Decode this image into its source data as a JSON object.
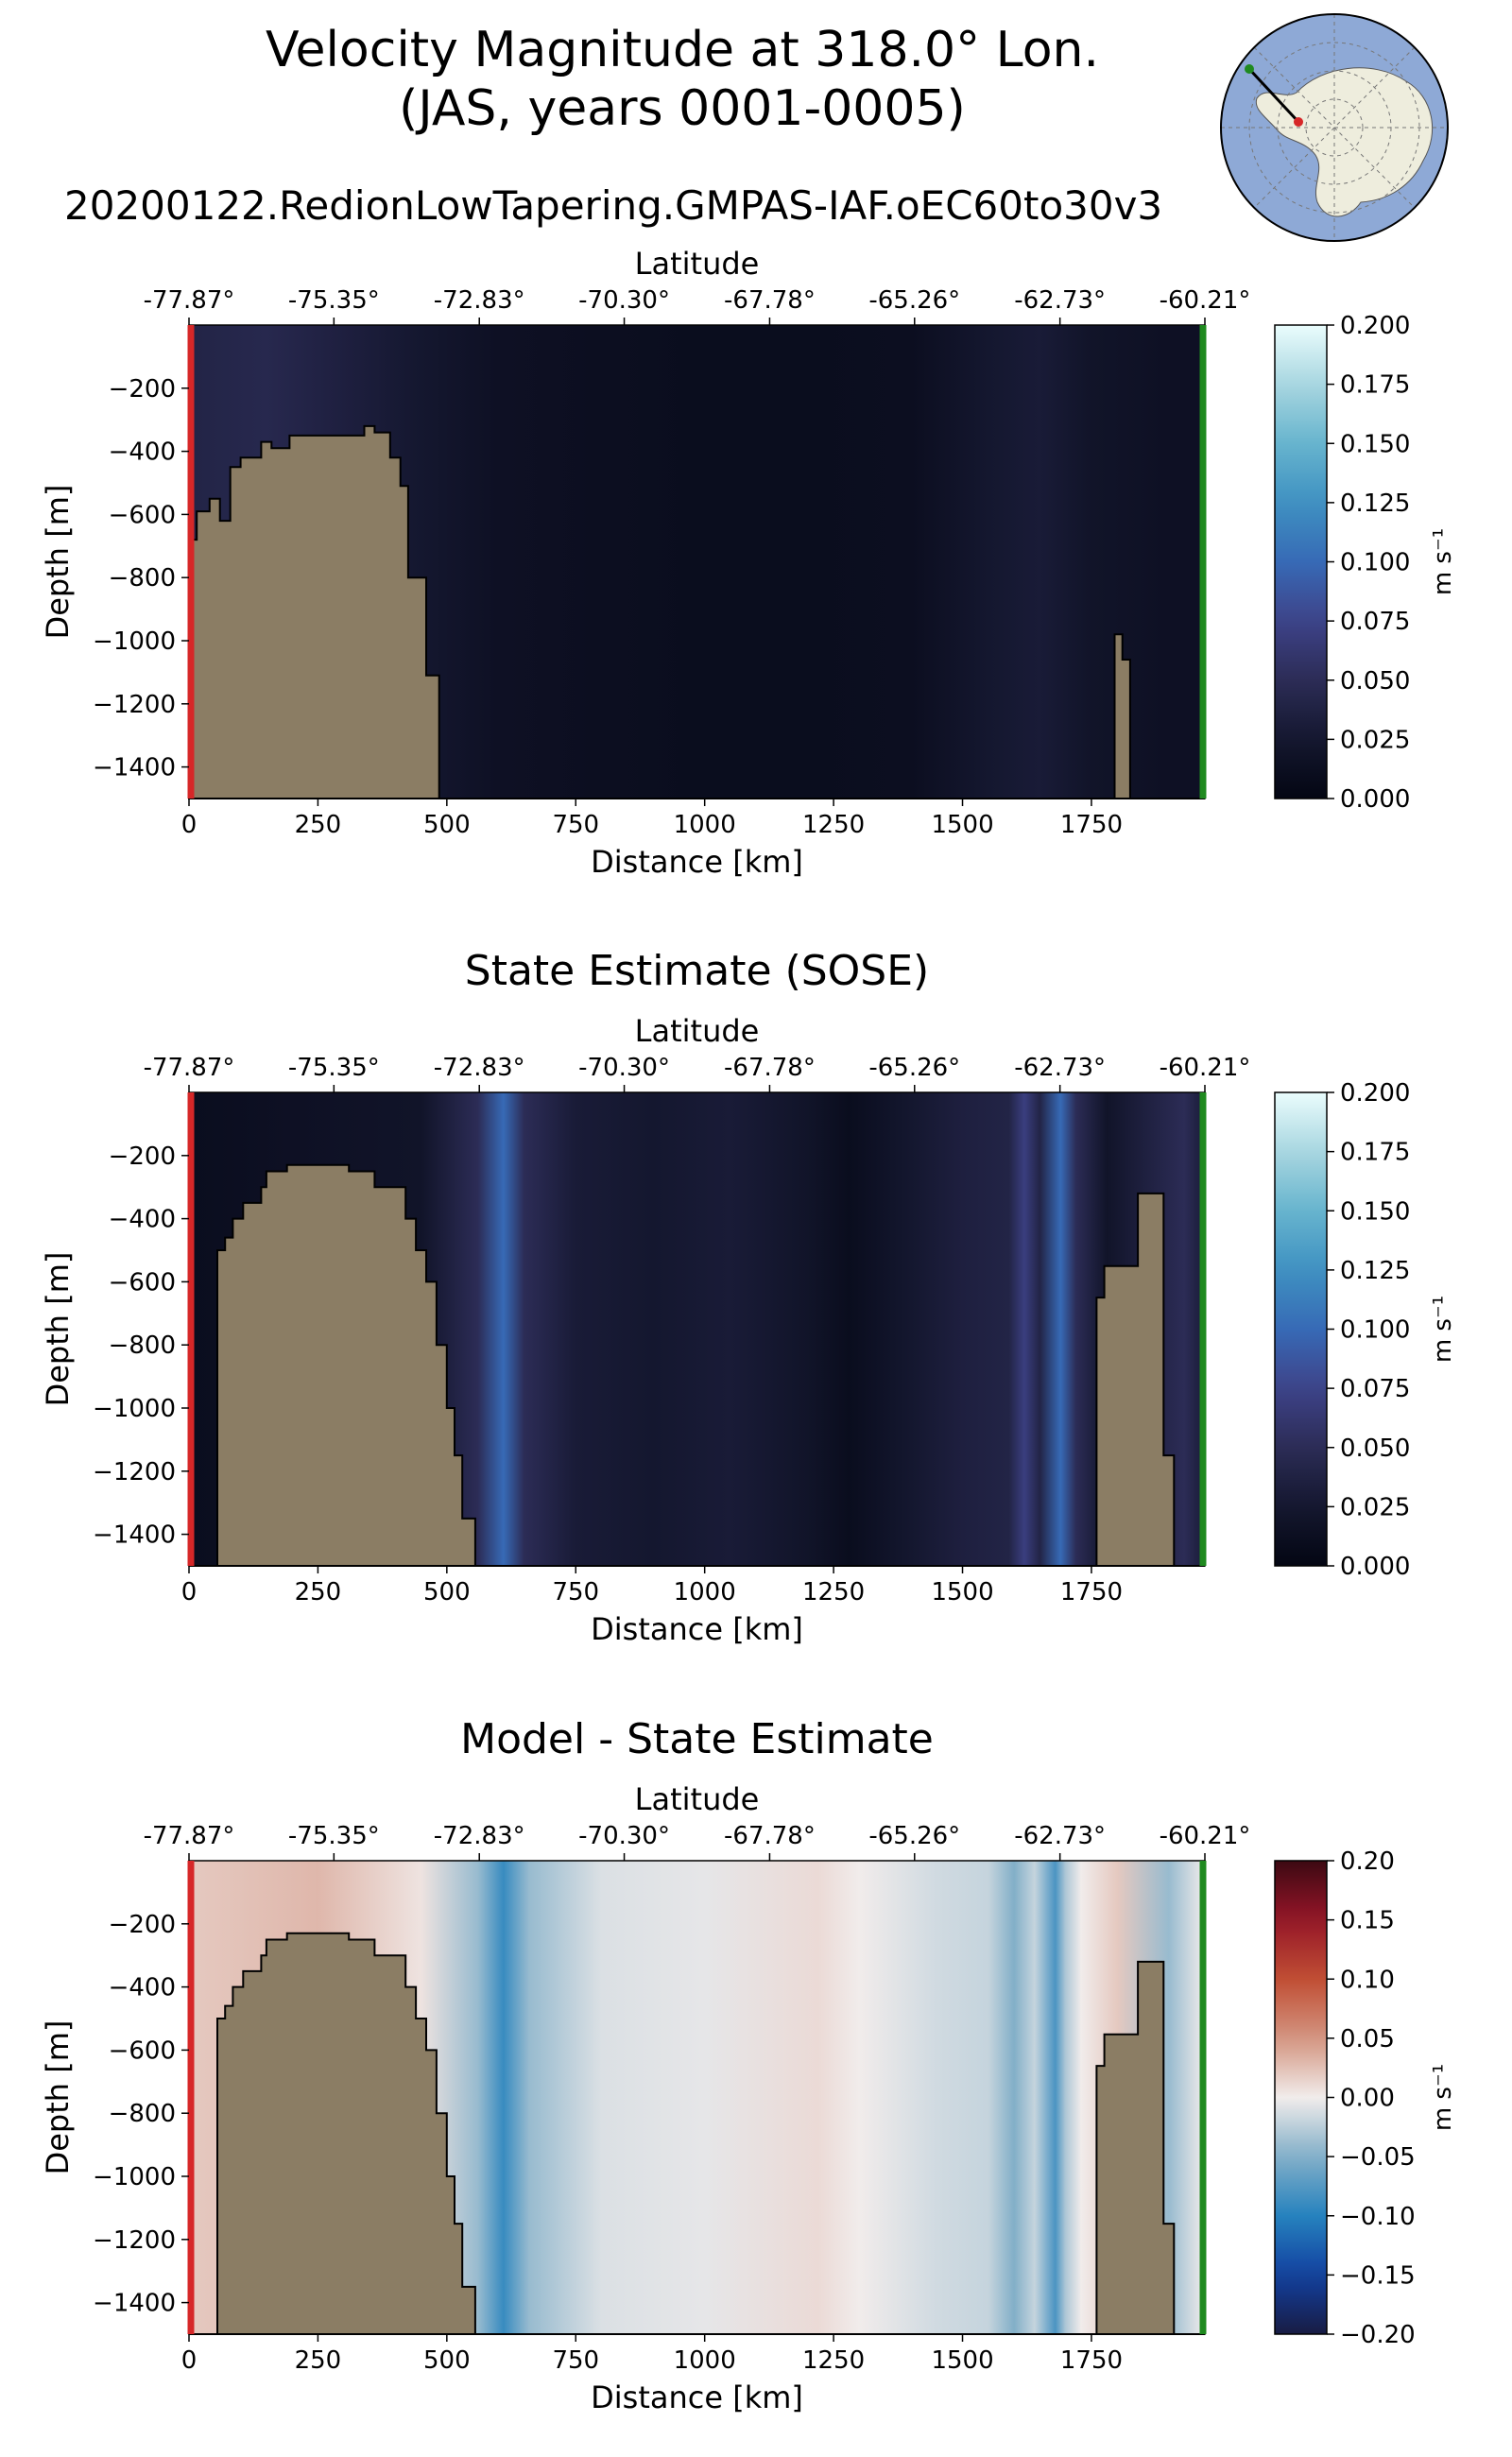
{
  "header": {
    "title_line1": "Velocity Magnitude at 318.0° Lon.",
    "title_line2": "(JAS, years 0001-0005)",
    "run_name": "20200122.RedionLowTapering.GMPAS-IAF.oEC60to30v3"
  },
  "colors": {
    "land": "#8b7d64",
    "start_marker": "#d62728",
    "end_marker": "#1f8a1f",
    "ocean_map": "#8ea9d6",
    "ice_map": "#eeeddd"
  },
  "chart_data": [
    {
      "type": "heatmap",
      "title": "",
      "xlabel": "Distance [km]",
      "ylabel": "Depth [m]",
      "top_xlabel": "Latitude",
      "xlim": [
        0,
        1970
      ],
      "ylim": [
        -1500,
        0
      ],
      "x_ticks": [
        "0",
        "250",
        "500",
        "750",
        "1000",
        "1250",
        "1500",
        "1750"
      ],
      "x_tick_values": [
        0,
        250,
        500,
        750,
        1000,
        1250,
        1500,
        1750
      ],
      "y_ticks": [
        "−200",
        "−400",
        "−600",
        "−800",
        "−1000",
        "−1200",
        "−1400"
      ],
      "y_tick_values": [
        -200,
        -400,
        -600,
        -800,
        -1000,
        -1200,
        -1400
      ],
      "lat_ticks": [
        "-77.87°",
        "-75.35°",
        "-72.83°",
        "-70.30°",
        "-67.78°",
        "-65.26°",
        "-62.73°",
        "-60.21°"
      ],
      "lat_tick_distances": [
        0,
        281,
        563,
        844,
        1126,
        1407,
        1689,
        1970
      ],
      "colormap": "ice",
      "colorbar": {
        "range": [
          0,
          0.2
        ],
        "tick_values": [
          0,
          0.025,
          0.05,
          0.075,
          0.1,
          0.125,
          0.15,
          0.175,
          0.2
        ],
        "ticks": [
          "0.000",
          "0.025",
          "0.050",
          "0.075",
          "0.100",
          "0.125",
          "0.150",
          "0.175",
          "0.200"
        ],
        "label": "m s⁻¹"
      },
      "column_distance_km": [
        0,
        150,
        300,
        450,
        600,
        800,
        1000,
        1200,
        1400,
        1550,
        1650,
        1750,
        1900,
        1970
      ],
      "column_values": [
        0.04,
        0.045,
        0.035,
        0.025,
        0.015,
        0.012,
        0.01,
        0.01,
        0.012,
        0.025,
        0.03,
        0.02,
        0.015,
        0.015
      ],
      "bathymetry": [
        [
          0,
          -680
        ],
        [
          15,
          -680
        ],
        [
          15,
          -590
        ],
        [
          40,
          -590
        ],
        [
          40,
          -550
        ],
        [
          60,
          -550
        ],
        [
          60,
          -620
        ],
        [
          80,
          -620
        ],
        [
          80,
          -450
        ],
        [
          100,
          -450
        ],
        [
          100,
          -420
        ],
        [
          140,
          -420
        ],
        [
          140,
          -370
        ],
        [
          160,
          -370
        ],
        [
          160,
          -390
        ],
        [
          195,
          -390
        ],
        [
          195,
          -350
        ],
        [
          340,
          -350
        ],
        [
          340,
          -320
        ],
        [
          360,
          -320
        ],
        [
          360,
          -340
        ],
        [
          390,
          -340
        ],
        [
          390,
          -420
        ],
        [
          410,
          -420
        ],
        [
          410,
          -510
        ],
        [
          425,
          -510
        ],
        [
          425,
          -800
        ],
        [
          460,
          -800
        ],
        [
          460,
          -1110
        ],
        [
          485,
          -1110
        ],
        [
          485,
          -1500
        ],
        [
          1795,
          -1500
        ],
        [
          1795,
          -980
        ],
        [
          1810,
          -980
        ],
        [
          1810,
          -1060
        ],
        [
          1825,
          -1060
        ],
        [
          1825,
          -1500
        ]
      ]
    },
    {
      "type": "heatmap",
      "title": "State Estimate (SOSE)",
      "xlabel": "Distance [km]",
      "ylabel": "Depth [m]",
      "top_xlabel": "Latitude",
      "xlim": [
        0,
        1970
      ],
      "ylim": [
        -1500,
        0
      ],
      "x_ticks": [
        "0",
        "250",
        "500",
        "750",
        "1000",
        "1250",
        "1500",
        "1750"
      ],
      "x_tick_values": [
        0,
        250,
        500,
        750,
        1000,
        1250,
        1500,
        1750
      ],
      "y_ticks": [
        "−200",
        "−400",
        "−600",
        "−800",
        "−1000",
        "−1200",
        "−1400"
      ],
      "y_tick_values": [
        -200,
        -400,
        -600,
        -800,
        -1000,
        -1200,
        -1400
      ],
      "lat_ticks": [
        "-77.87°",
        "-75.35°",
        "-72.83°",
        "-70.30°",
        "-67.78°",
        "-65.26°",
        "-62.73°",
        "-60.21°"
      ],
      "lat_tick_distances": [
        0,
        281,
        563,
        844,
        1126,
        1407,
        1689,
        1970
      ],
      "colormap": "ice",
      "colorbar": {
        "range": [
          0,
          0.2
        ],
        "tick_values": [
          0,
          0.025,
          0.05,
          0.075,
          0.1,
          0.125,
          0.15,
          0.175,
          0.2
        ],
        "ticks": [
          "0.000",
          "0.025",
          "0.050",
          "0.075",
          "0.100",
          "0.125",
          "0.150",
          "0.175",
          "0.200"
        ],
        "label": "m s⁻¹"
      },
      "column_distance_km": [
        0,
        200,
        450,
        560,
        610,
        650,
        750,
        900,
        1050,
        1200,
        1280,
        1400,
        1500,
        1590,
        1620,
        1650,
        1690,
        1720,
        1780,
        1930,
        1970
      ],
      "column_values": [
        0.01,
        0.015,
        0.02,
        0.05,
        0.1,
        0.05,
        0.03,
        0.025,
        0.03,
        0.02,
        0.01,
        0.025,
        0.035,
        0.04,
        0.07,
        0.04,
        0.1,
        0.05,
        0.02,
        0.05,
        0.03
      ],
      "bathymetry": [
        [
          0,
          -1500
        ],
        [
          0,
          -1500
        ],
        [
          55,
          -1500
        ],
        [
          55,
          -500
        ],
        [
          70,
          -500
        ],
        [
          70,
          -460
        ],
        [
          85,
          -460
        ],
        [
          85,
          -400
        ],
        [
          105,
          -400
        ],
        [
          105,
          -350
        ],
        [
          140,
          -350
        ],
        [
          140,
          -300
        ],
        [
          150,
          -300
        ],
        [
          150,
          -250
        ],
        [
          190,
          -250
        ],
        [
          190,
          -230
        ],
        [
          310,
          -230
        ],
        [
          310,
          -250
        ],
        [
          360,
          -250
        ],
        [
          360,
          -300
        ],
        [
          420,
          -300
        ],
        [
          420,
          -400
        ],
        [
          440,
          -400
        ],
        [
          440,
          -500
        ],
        [
          460,
          -500
        ],
        [
          460,
          -600
        ],
        [
          480,
          -600
        ],
        [
          480,
          -800
        ],
        [
          500,
          -800
        ],
        [
          500,
          -1000
        ],
        [
          515,
          -1000
        ],
        [
          515,
          -1150
        ],
        [
          530,
          -1150
        ],
        [
          530,
          -1350
        ],
        [
          555,
          -1350
        ],
        [
          555,
          -1500
        ],
        [
          1760,
          -1500
        ],
        [
          1760,
          -650
        ],
        [
          1775,
          -650
        ],
        [
          1775,
          -550
        ],
        [
          1840,
          -550
        ],
        [
          1840,
          -320
        ],
        [
          1890,
          -320
        ],
        [
          1890,
          -1150
        ],
        [
          1910,
          -1150
        ],
        [
          1910,
          -1500
        ]
      ]
    },
    {
      "type": "heatmap",
      "title": "Model - State Estimate",
      "xlabel": "Distance [km]",
      "ylabel": "Depth [m]",
      "top_xlabel": "Latitude",
      "xlim": [
        0,
        1970
      ],
      "ylim": [
        -1500,
        0
      ],
      "x_ticks": [
        "0",
        "250",
        "500",
        "750",
        "1000",
        "1250",
        "1500",
        "1750"
      ],
      "x_tick_values": [
        0,
        250,
        500,
        750,
        1000,
        1250,
        1500,
        1750
      ],
      "y_ticks": [
        "−200",
        "−400",
        "−600",
        "−800",
        "−1000",
        "−1200",
        "−1400"
      ],
      "y_tick_values": [
        -200,
        -400,
        -600,
        -800,
        -1000,
        -1200,
        -1400
      ],
      "lat_ticks": [
        "-77.87°",
        "-75.35°",
        "-72.83°",
        "-70.30°",
        "-67.78°",
        "-65.26°",
        "-62.73°",
        "-60.21°"
      ],
      "lat_tick_distances": [
        0,
        281,
        563,
        844,
        1126,
        1407,
        1689,
        1970
      ],
      "colormap": "balance",
      "colorbar": {
        "range": [
          -0.2,
          0.2
        ],
        "tick_values": [
          -0.2,
          -0.15,
          -0.1,
          -0.05,
          0,
          0.05,
          0.1,
          0.15,
          0.2
        ],
        "ticks": [
          "−0.20",
          "−0.15",
          "−0.10",
          "−0.05",
          "0.00",
          "0.05",
          "0.10",
          "0.15",
          "0.20"
        ],
        "label": "m s⁻¹"
      },
      "column_distance_km": [
        0,
        250,
        450,
        560,
        610,
        660,
        800,
        1000,
        1220,
        1300,
        1450,
        1550,
        1600,
        1640,
        1680,
        1700,
        1730,
        1800,
        1900,
        1970
      ],
      "column_values": [
        0.02,
        0.03,
        0.005,
        -0.04,
        -0.09,
        -0.04,
        -0.01,
        -0.005,
        0.01,
        0.0,
        -0.015,
        -0.02,
        -0.05,
        -0.02,
        -0.08,
        -0.03,
        0.0,
        0.02,
        -0.04,
        0.0
      ],
      "bathymetry": [
        [
          0,
          -1500
        ],
        [
          55,
          -1500
        ],
        [
          55,
          -500
        ],
        [
          70,
          -500
        ],
        [
          70,
          -460
        ],
        [
          85,
          -460
        ],
        [
          85,
          -400
        ],
        [
          105,
          -400
        ],
        [
          105,
          -350
        ],
        [
          140,
          -350
        ],
        [
          140,
          -300
        ],
        [
          150,
          -300
        ],
        [
          150,
          -250
        ],
        [
          190,
          -250
        ],
        [
          190,
          -230
        ],
        [
          310,
          -230
        ],
        [
          310,
          -250
        ],
        [
          360,
          -250
        ],
        [
          360,
          -300
        ],
        [
          420,
          -300
        ],
        [
          420,
          -400
        ],
        [
          440,
          -400
        ],
        [
          440,
          -500
        ],
        [
          460,
          -500
        ],
        [
          460,
          -600
        ],
        [
          480,
          -600
        ],
        [
          480,
          -800
        ],
        [
          500,
          -800
        ],
        [
          500,
          -1000
        ],
        [
          515,
          -1000
        ],
        [
          515,
          -1150
        ],
        [
          530,
          -1150
        ],
        [
          530,
          -1350
        ],
        [
          555,
          -1350
        ],
        [
          555,
          -1500
        ],
        [
          1760,
          -1500
        ],
        [
          1760,
          -650
        ],
        [
          1775,
          -650
        ],
        [
          1775,
          -550
        ],
        [
          1840,
          -550
        ],
        [
          1840,
          -320
        ],
        [
          1890,
          -320
        ],
        [
          1890,
          -1150
        ],
        [
          1910,
          -1150
        ],
        [
          1910,
          -1500
        ]
      ]
    }
  ]
}
